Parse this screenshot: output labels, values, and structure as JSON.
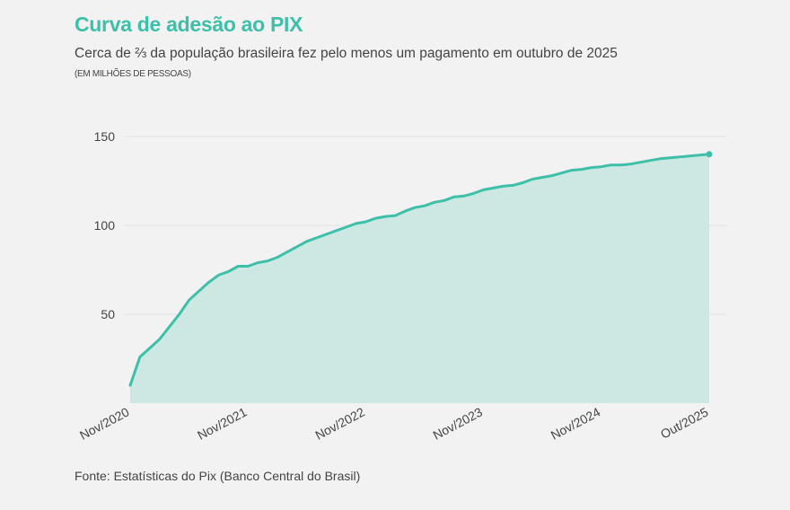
{
  "title": "Curva de adesão ao PIX",
  "subtitle": "Cerca de ⅔ da população brasileira fez pelo menos um pagamento em outubro de 2025",
  "unit": "(EM MILHÕES DE PESSOAS)",
  "source": "Fonte: Estatísticas do Pix (Banco Central do Brasil)",
  "colors": {
    "line": "#3dbfa9",
    "area": "#cde8e3",
    "grid": "#e2e2e2"
  },
  "chart_data": {
    "type": "area",
    "title": "Curva de adesão ao PIX",
    "xlabel": "",
    "ylabel": "(EM MILHÕES DE PESSOAS)",
    "x_start": "Nov/2020",
    "x_end": "Out/2025",
    "frequency": "monthly",
    "values": [
      10,
      26,
      31,
      36,
      43,
      50,
      58,
      63,
      68,
      72,
      74,
      77,
      77,
      79,
      80,
      82,
      85,
      88,
      91,
      93,
      95,
      97,
      99,
      101,
      102,
      104,
      105,
      105.5,
      108,
      110,
      111,
      113,
      114,
      116,
      116.5,
      118,
      120,
      121,
      122,
      122.5,
      124,
      126,
      127,
      128,
      129.5,
      131,
      131.5,
      132.5,
      133,
      134,
      134,
      134.5,
      135.5,
      136.5,
      137.5,
      138,
      138.5,
      139,
      139.5,
      140
    ],
    "x_ticks": [
      {
        "index": 0,
        "label": "Nov/2020"
      },
      {
        "index": 12,
        "label": "Nov/2021"
      },
      {
        "index": 24,
        "label": "Nov/2022"
      },
      {
        "index": 36,
        "label": "Nov/2023"
      },
      {
        "index": 48,
        "label": "Nov/2024"
      },
      {
        "index": 59,
        "label": "Out/2025"
      }
    ],
    "y_ticks": [
      50,
      100,
      150
    ],
    "ylim": [
      0,
      150
    ],
    "grid": true,
    "end_marker": true
  }
}
